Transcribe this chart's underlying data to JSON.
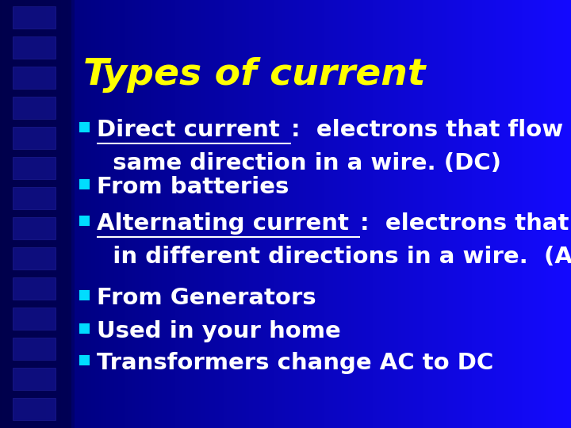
{
  "title": "Types of current",
  "title_color": "#FFFF00",
  "title_fontsize": 34,
  "bullet_color": "#00DDFF",
  "body_fontsize": 21,
  "figsize": [
    7.2,
    5.4
  ],
  "dpi": 100,
  "bullets": [
    {
      "underlined": "Direct current",
      "rest_line1": ":  electrons that flow in the",
      "line2": "  same direction in a wire. (DC)"
    },
    {
      "underlined": null,
      "rest_line1": "From batteries",
      "line2": null
    },
    {
      "underlined": "Alternating current",
      "rest_line1": ":  electrons that flow",
      "line2": "  in different directions in a wire.  (AC)"
    },
    {
      "underlined": null,
      "rest_line1": "From Generators",
      "line2": null
    },
    {
      "underlined": null,
      "rest_line1": "Used in your home",
      "line2": null
    },
    {
      "underlined": null,
      "rest_line1": "Transformers change AC to DC",
      "line2": null
    }
  ]
}
